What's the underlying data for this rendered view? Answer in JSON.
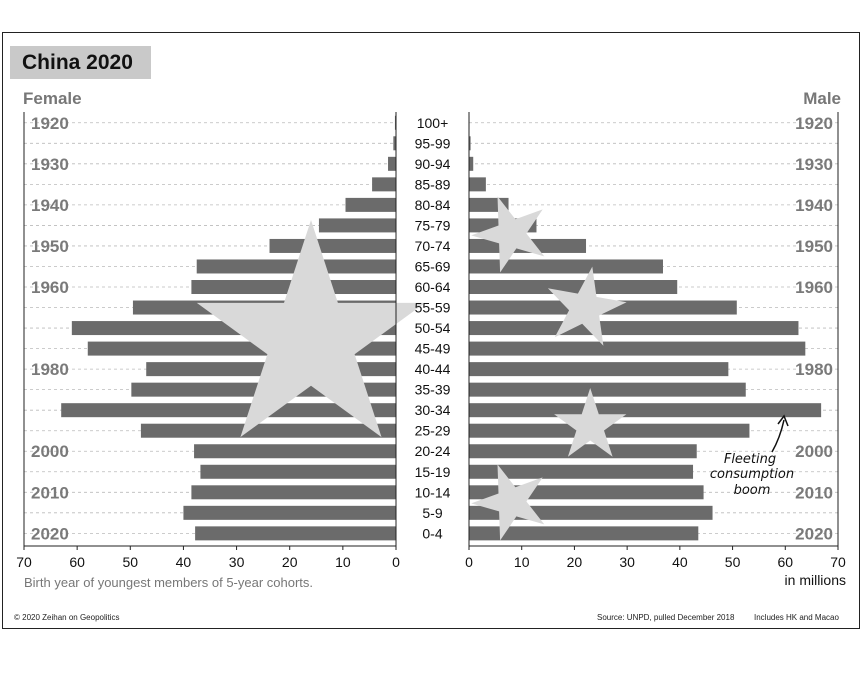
{
  "chart_data": {
    "type": "bar",
    "title": "China 2020",
    "left_label": "Female",
    "right_label": "Male",
    "categories": [
      "0-4",
      "5-9",
      "10-14",
      "15-19",
      "20-24",
      "25-29",
      "30-34",
      "35-39",
      "40-44",
      "45-49",
      "50-54",
      "55-59",
      "60-64",
      "65-69",
      "70-74",
      "75-79",
      "80-84",
      "85-89",
      "90-94",
      "95-99",
      "100+"
    ],
    "series": [
      {
        "name": "Female",
        "values": [
          37.8,
          40.0,
          38.5,
          36.8,
          38.0,
          48.0,
          63.0,
          49.8,
          47.0,
          58.0,
          61.0,
          49.5,
          38.5,
          37.5,
          23.8,
          14.5,
          9.5,
          4.5,
          1.5,
          0.5,
          0.2
        ]
      },
      {
        "name": "Male",
        "values": [
          43.5,
          46.2,
          44.5,
          42.5,
          43.2,
          53.2,
          66.8,
          52.5,
          49.2,
          63.8,
          62.5,
          50.8,
          39.5,
          36.8,
          22.2,
          12.8,
          7.5,
          3.2,
          0.8,
          0.3,
          0.1
        ]
      }
    ],
    "year_labels": [
      "1920",
      "1930",
      "1940",
      "1950",
      "1960",
      "1980",
      "2000",
      "2010",
      "2020"
    ],
    "year_label_ages": [
      "100+",
      "90-94",
      "80-84",
      "70-74",
      "60-64",
      "40-44",
      "20-24",
      "10-14",
      "0-4"
    ],
    "xlim": [
      0,
      70
    ],
    "x_ticks": [
      "70",
      "60",
      "50",
      "40",
      "30",
      "20",
      "10",
      "0"
    ],
    "x_ticks_right": [
      "0",
      "10",
      "20",
      "30",
      "40",
      "50",
      "60",
      "70"
    ],
    "unit_label": "in millions",
    "note": "Birth year of youngest members of 5-year cohorts.",
    "annotation": {
      "lines": [
        "Fleeting",
        "consumption",
        "boom"
      ],
      "target_age": "30-34"
    },
    "grid": "dashed horizontal"
  },
  "footer": {
    "copyright": "© 2020 Zeihan on Geopolitics",
    "source": "Source: UNPD, pulled December 2018",
    "includes": "Includes HK and Macao"
  },
  "colors": {
    "bar": "#6b6b6b",
    "star": "#d9d9d9",
    "grid": "#bbbbbb",
    "title_bg": "#c9c9c9"
  }
}
